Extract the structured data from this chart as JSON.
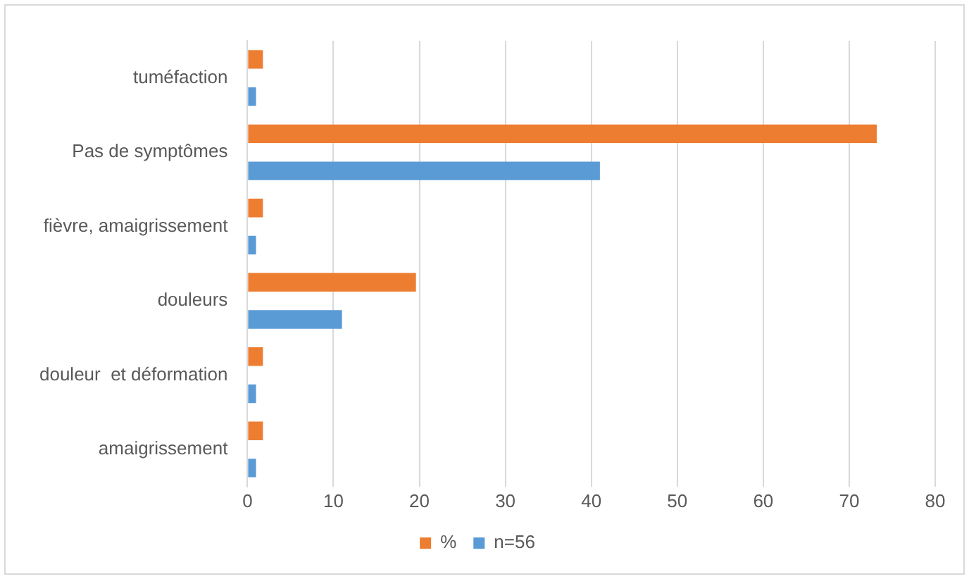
{
  "chart_data": {
    "type": "bar",
    "orientation": "horizontal",
    "categories": [
      "tuméfaction",
      "Pas de symptômes",
      "fièvre, amaigrissement",
      "douleurs",
      "douleur  et déformation",
      "amaigrissement"
    ],
    "series": [
      {
        "name": "%",
        "color": "#ed7d31",
        "values": [
          1.8,
          73.2,
          1.8,
          19.6,
          1.8,
          1.8
        ]
      },
      {
        "name": "n=56",
        "color": "#5b9bd5",
        "values": [
          1,
          41,
          1,
          11,
          1,
          1
        ]
      }
    ],
    "xlim": [
      0,
      80
    ],
    "xticks": [
      0,
      10,
      20,
      30,
      40,
      50,
      60,
      70,
      80
    ],
    "grid": "x",
    "legend": "bottom"
  }
}
